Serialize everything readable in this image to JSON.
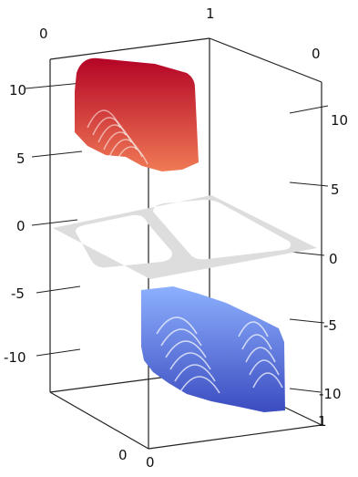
{
  "chart_data": {
    "type": "surface3d",
    "title": "",
    "xlabel": "",
    "ylabel": "",
    "zlabel": "",
    "x_range": [
      0,
      1
    ],
    "y_range": [
      0,
      1
    ],
    "z_range": [
      -12,
      12
    ],
    "x_ticks": [
      "0",
      "1"
    ],
    "y_ticks": [
      "0",
      "1"
    ],
    "z_ticks_left": [
      "10",
      "5",
      "0",
      "-5",
      "-10"
    ],
    "z_ticks_right": [
      "10",
      "5",
      "0",
      "-5",
      "-10"
    ],
    "top_corner_labels": {
      "back_left": "0",
      "back_center": "1",
      "back_right": "0"
    },
    "bottom_corner_labels": {
      "front_left": "0",
      "front_center": "0",
      "front_right": "1"
    },
    "grid": false,
    "surfaces": [
      {
        "role": "upper",
        "z_min": 5,
        "z_max": 12,
        "color_low": "#f07a55",
        "color_high": "#b40426"
      },
      {
        "role": "plane",
        "z": 0,
        "color": "#dddddd",
        "holes": 2
      },
      {
        "role": "lower",
        "z_min": -12,
        "z_max": -5,
        "color_low": "#3b4cc0",
        "color_high": "#8db0fe"
      }
    ]
  }
}
